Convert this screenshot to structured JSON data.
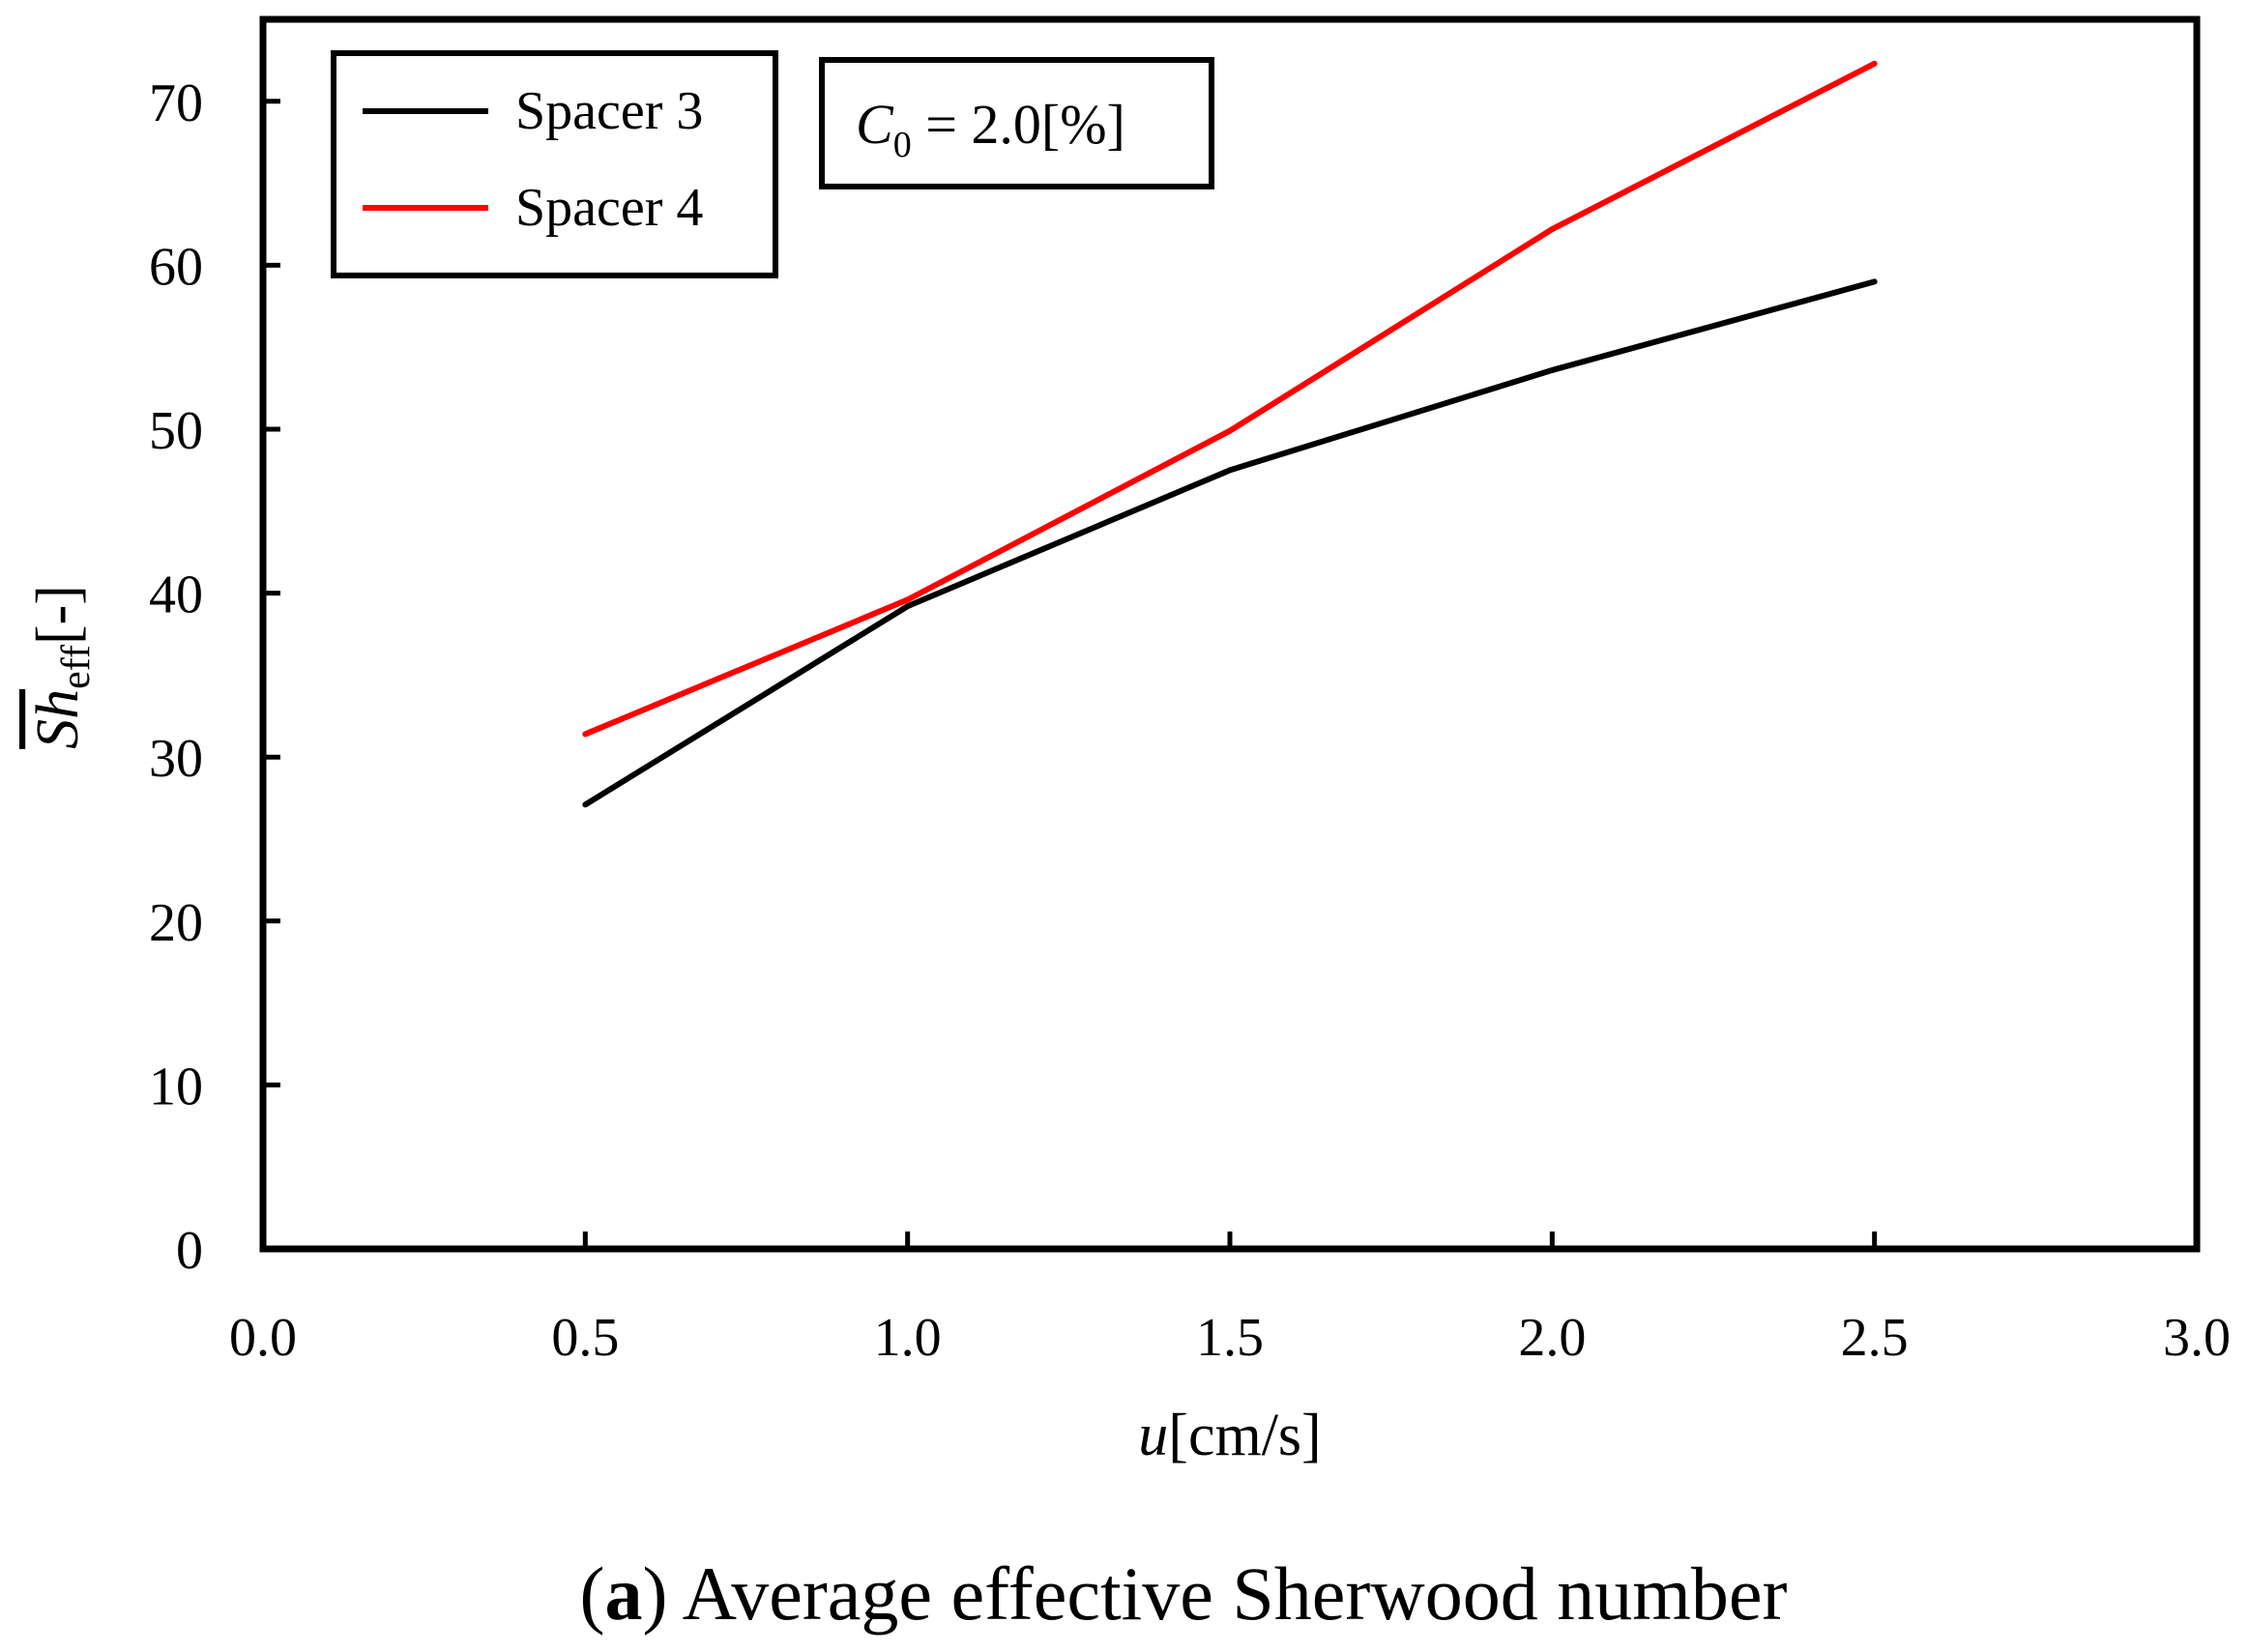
{
  "chart_data": {
    "type": "line",
    "title": "",
    "caption": {
      "letter": "a",
      "open": "(",
      "close": ")",
      "text": " Average effective Sherwood number"
    },
    "xlabel": {
      "var": "u",
      "unit": "[cm/s]"
    },
    "ylabel": {
      "var": "Sh",
      "sub": "eff",
      "unit": "[-]"
    },
    "xlim": [
      0.0,
      3.0
    ],
    "ylim": [
      0,
      75
    ],
    "xticks": [
      "0.0",
      "0.5",
      "1.0",
      "1.5",
      "2.0",
      "2.5",
      "3.0"
    ],
    "yticks": [
      "0",
      "10",
      "20",
      "30",
      "40",
      "50",
      "60",
      "70"
    ],
    "grid": false,
    "legend_position": "top-left",
    "series": [
      {
        "name": "Spacer 3",
        "color": "#000000",
        "x": [
          0.5,
          1.0,
          1.5,
          2.0,
          2.5
        ],
        "y": [
          27.1,
          39.2,
          47.5,
          53.6,
          59.0
        ]
      },
      {
        "name": "Spacer 4",
        "color": "#ff0000",
        "x": [
          0.5,
          1.0,
          1.5,
          2.0,
          2.5
        ],
        "y": [
          31.4,
          39.6,
          49.9,
          62.2,
          72.3
        ]
      }
    ],
    "annotation": {
      "var": "C",
      "sub": "0",
      "rest": " = 2.0[%]"
    }
  }
}
